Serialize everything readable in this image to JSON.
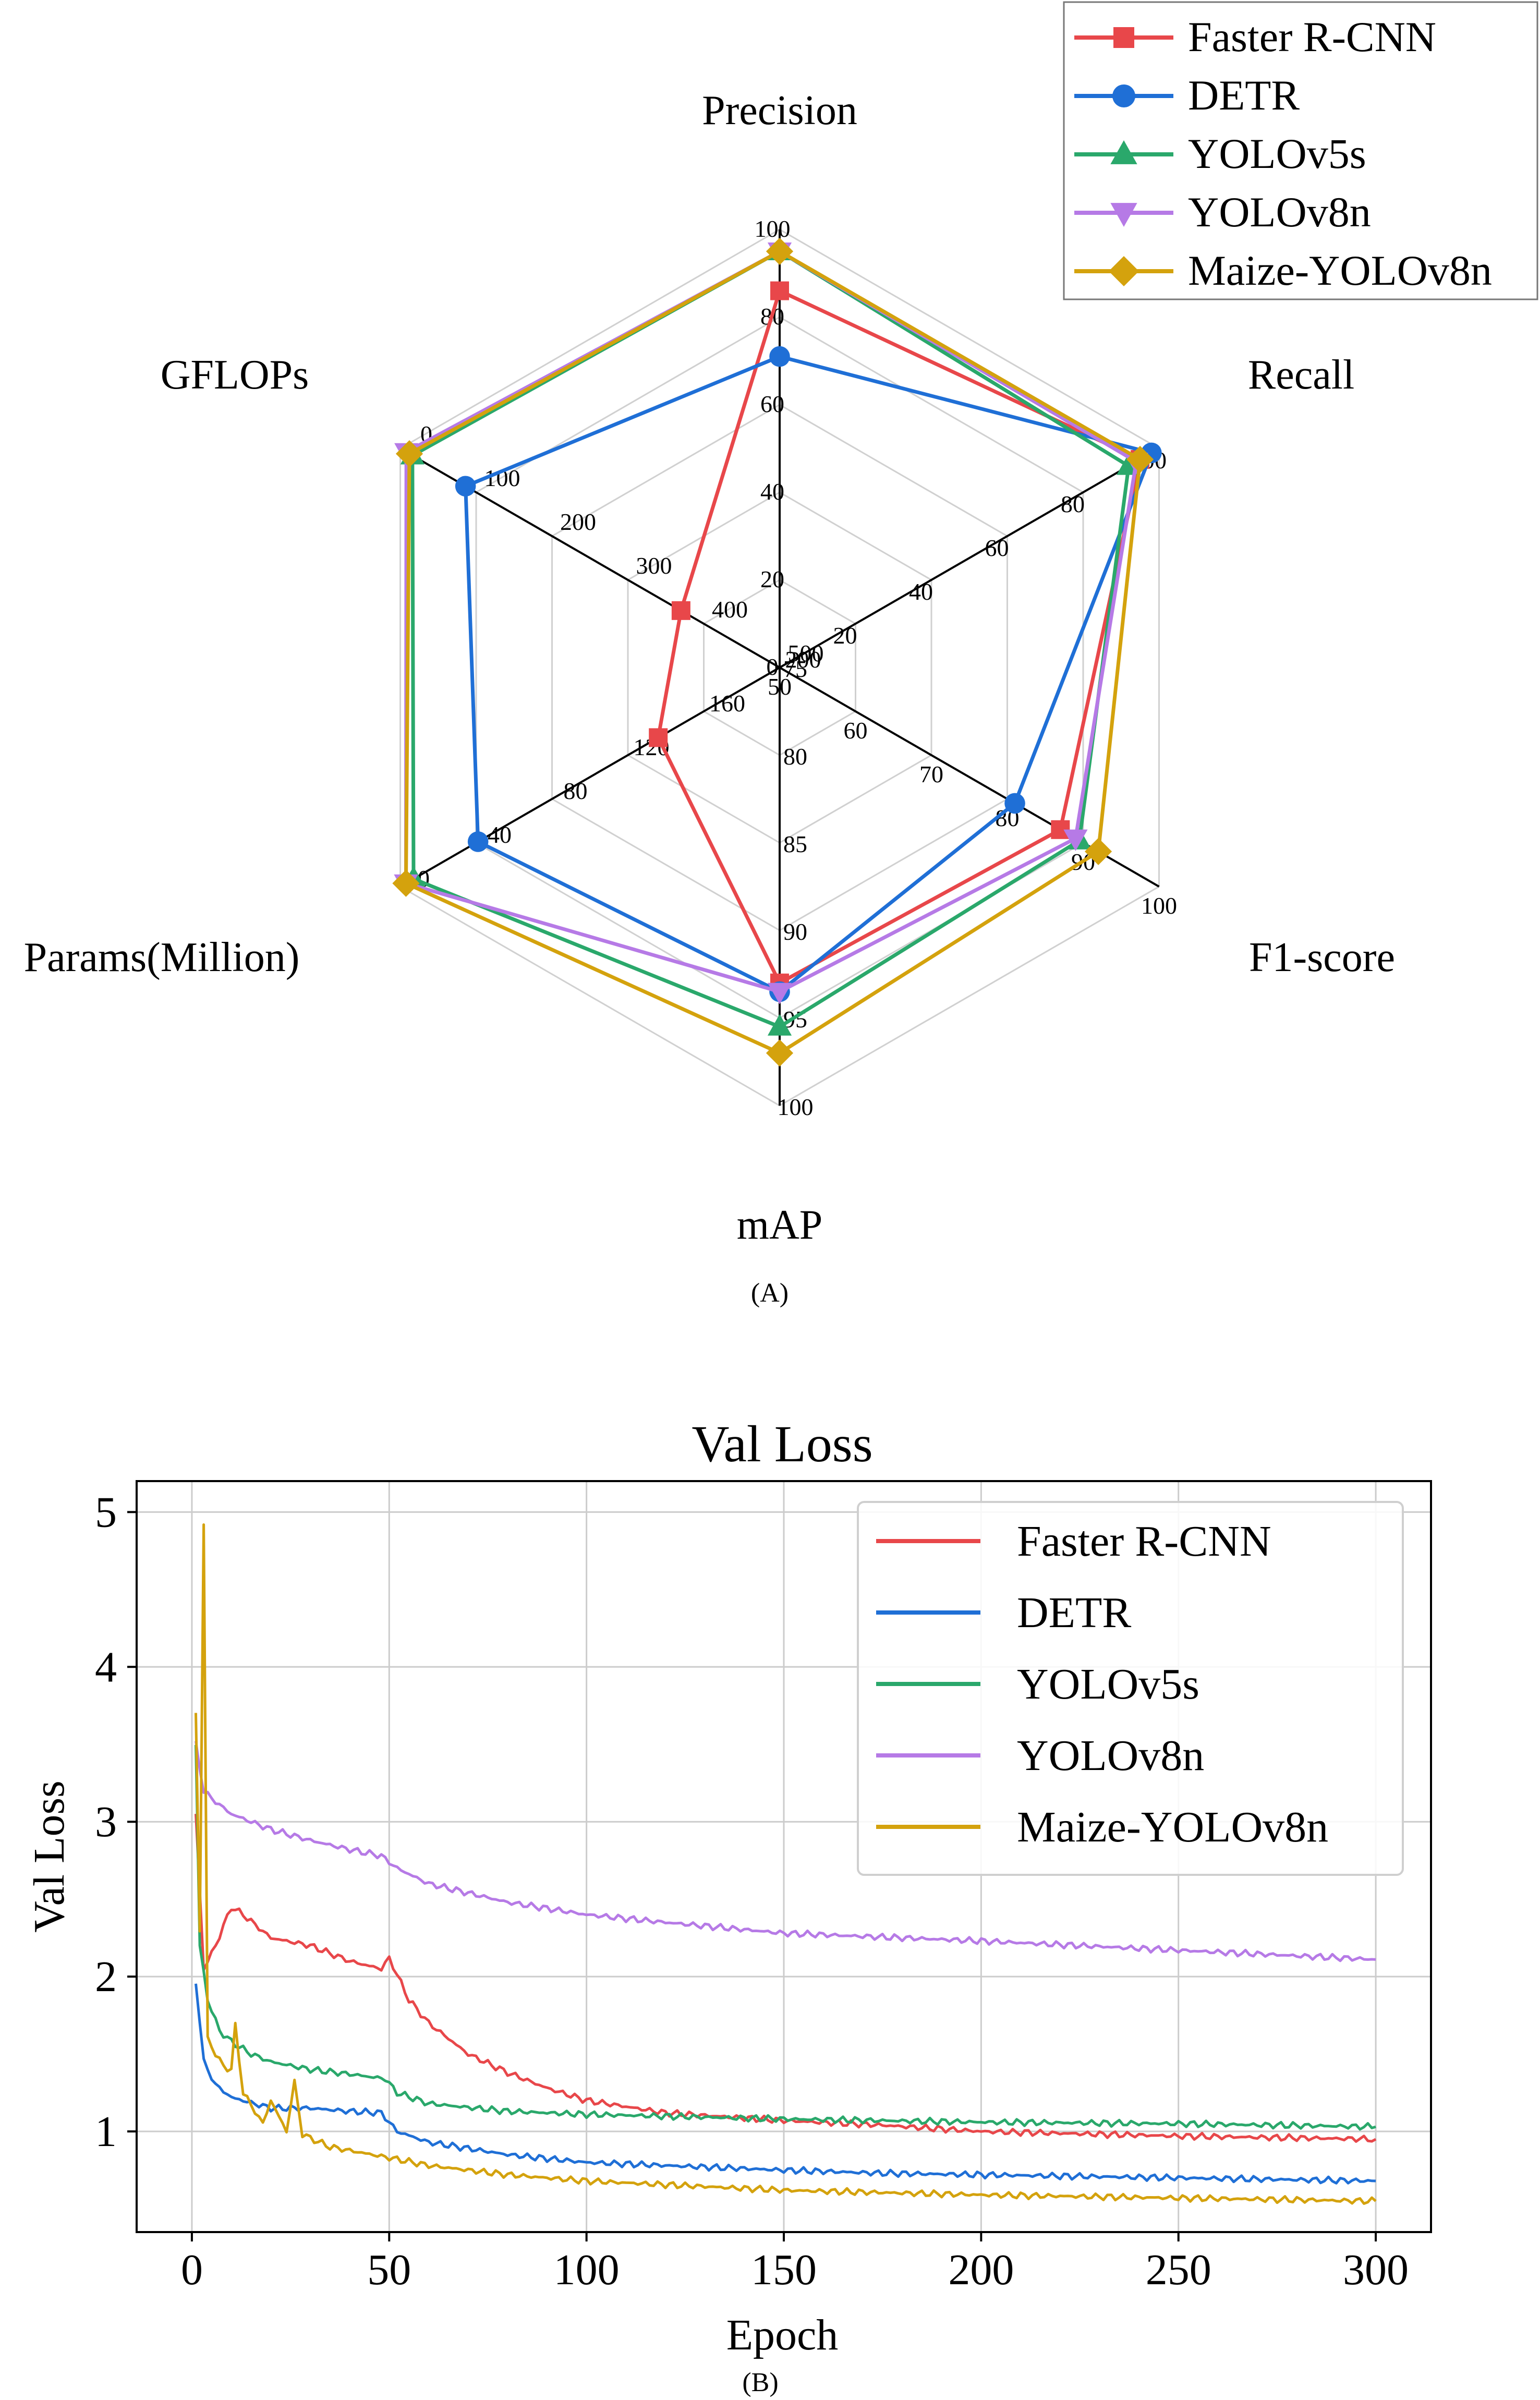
{
  "chart_data": [
    {
      "type": "radar",
      "caption": "(A)",
      "axes": [
        {
          "name": "Precision",
          "ticks": [
            "0",
            "20",
            "40",
            "60",
            "80",
            "100"
          ],
          "range": [
            0,
            100
          ]
        },
        {
          "name": "Recall",
          "ticks": [
            "20",
            "40",
            "60",
            "80",
            "100"
          ],
          "range": [
            0,
            100
          ]
        },
        {
          "name": "F1-score",
          "ticks": [
            "50",
            "60",
            "70",
            "80",
            "90",
            "100"
          ],
          "range": [
            50,
            100
          ]
        },
        {
          "name": "mAP",
          "ticks": [
            "75",
            "80",
            "85",
            "90",
            "95",
            "100"
          ],
          "range": [
            75,
            100
          ]
        },
        {
          "name": "Params(Million)",
          "ticks": [
            "200",
            "160",
            "120",
            "80",
            "40",
            "0"
          ],
          "range": [
            200,
            0
          ]
        },
        {
          "name": "GFLOPs",
          "ticks": [
            "500",
            "400",
            "300",
            "200",
            "100",
            "0"
          ],
          "range": [
            500,
            0
          ]
        }
      ],
      "series": [
        {
          "name": "Faster R-CNN",
          "color": "#e8474a",
          "marker": "square",
          "values": [
            86,
            95,
            87,
            93,
            136,
            370
          ]
        },
        {
          "name": "DETR",
          "color": "#1f6fd6",
          "marker": "circle",
          "values": [
            71,
            98,
            81,
            93.5,
            41,
            86
          ]
        },
        {
          "name": "YOLOv5s",
          "color": "#2aa86b",
          "marker": "triangle-up",
          "values": [
            95,
            92,
            89.5,
            95.5,
            7,
            16
          ]
        },
        {
          "name": "YOLOv8n",
          "color": "#b67ae6",
          "marker": "triangle-down",
          "values": [
            95,
            94,
            89,
            93.5,
            3,
            8
          ]
        },
        {
          "name": "Maize-YOLOv8n",
          "color": "#d4a20d",
          "marker": "diamond",
          "values": [
            95,
            95,
            92,
            97,
            3,
            12
          ]
        }
      ]
    },
    {
      "type": "line",
      "caption": "(B)",
      "title": "Val Loss",
      "xlabel": "Epoch",
      "ylabel": "Val Loss",
      "xlim": [
        -14,
        314
      ],
      "ylim": [
        0.35,
        5.2
      ],
      "xticks": [
        "0",
        "50",
        "100",
        "150",
        "200",
        "250",
        "300"
      ],
      "yticks": [
        "1",
        "2",
        "3",
        "4",
        "5"
      ],
      "grid": true,
      "legend": "top-right",
      "series": [
        {
          "name": "Faster R-CNN",
          "color": "#e8474a",
          "x": [
            1,
            3,
            6,
            10,
            13,
            20,
            30,
            40,
            48,
            50,
            55,
            60,
            70,
            80,
            90,
            100,
            120,
            150,
            175,
            200,
            250,
            300
          ],
          "y": [
            3.05,
            2.05,
            2.2,
            2.45,
            2.4,
            2.25,
            2.2,
            2.1,
            2.05,
            2.12,
            1.85,
            1.7,
            1.5,
            1.38,
            1.28,
            1.2,
            1.12,
            1.07,
            1.04,
            1.0,
            0.97,
            0.95
          ]
        },
        {
          "name": "DETR",
          "color": "#1f6fd6",
          "x": [
            1,
            3,
            6,
            10,
            20,
            30,
            40,
            48,
            52,
            60,
            80,
            100,
            120,
            150,
            175,
            200,
            250,
            300
          ],
          "y": [
            1.97,
            1.45,
            1.3,
            1.22,
            1.15,
            1.15,
            1.13,
            1.12,
            1.0,
            0.93,
            0.85,
            0.8,
            0.78,
            0.75,
            0.73,
            0.72,
            0.7,
            0.68
          ]
        },
        {
          "name": "YOLOv5s",
          "color": "#2aa86b",
          "x": [
            1,
            2,
            4,
            7,
            10,
            15,
            20,
            30,
            40,
            49,
            52,
            60,
            80,
            100,
            150,
            200,
            250,
            300
          ],
          "y": [
            3.5,
            2.2,
            1.85,
            1.65,
            1.58,
            1.5,
            1.45,
            1.4,
            1.37,
            1.34,
            1.25,
            1.18,
            1.13,
            1.11,
            1.08,
            1.06,
            1.05,
            1.03
          ]
        },
        {
          "name": "YOLOv8n",
          "color": "#b67ae6",
          "x": [
            1,
            3,
            5,
            10,
            20,
            30,
            40,
            48,
            52,
            60,
            80,
            100,
            120,
            150,
            200,
            250,
            300
          ],
          "y": [
            3.5,
            3.2,
            3.15,
            3.05,
            2.95,
            2.88,
            2.82,
            2.78,
            2.7,
            2.6,
            2.48,
            2.4,
            2.35,
            2.28,
            2.23,
            2.17,
            2.11
          ]
        },
        {
          "name": "Maize-YOLOv8n",
          "color": "#d4a20d",
          "x": [
            1,
            2,
            3,
            4,
            6,
            8,
            10,
            11,
            13,
            18,
            20,
            24,
            26,
            28,
            35,
            50,
            60,
            80,
            100,
            150,
            200,
            250,
            300
          ],
          "y": [
            3.7,
            2.3,
            4.92,
            1.6,
            1.5,
            1.42,
            1.4,
            1.68,
            1.25,
            1.05,
            1.2,
            1.0,
            1.32,
            0.98,
            0.9,
            0.83,
            0.78,
            0.72,
            0.68,
            0.62,
            0.59,
            0.57,
            0.55
          ]
        }
      ]
    }
  ]
}
